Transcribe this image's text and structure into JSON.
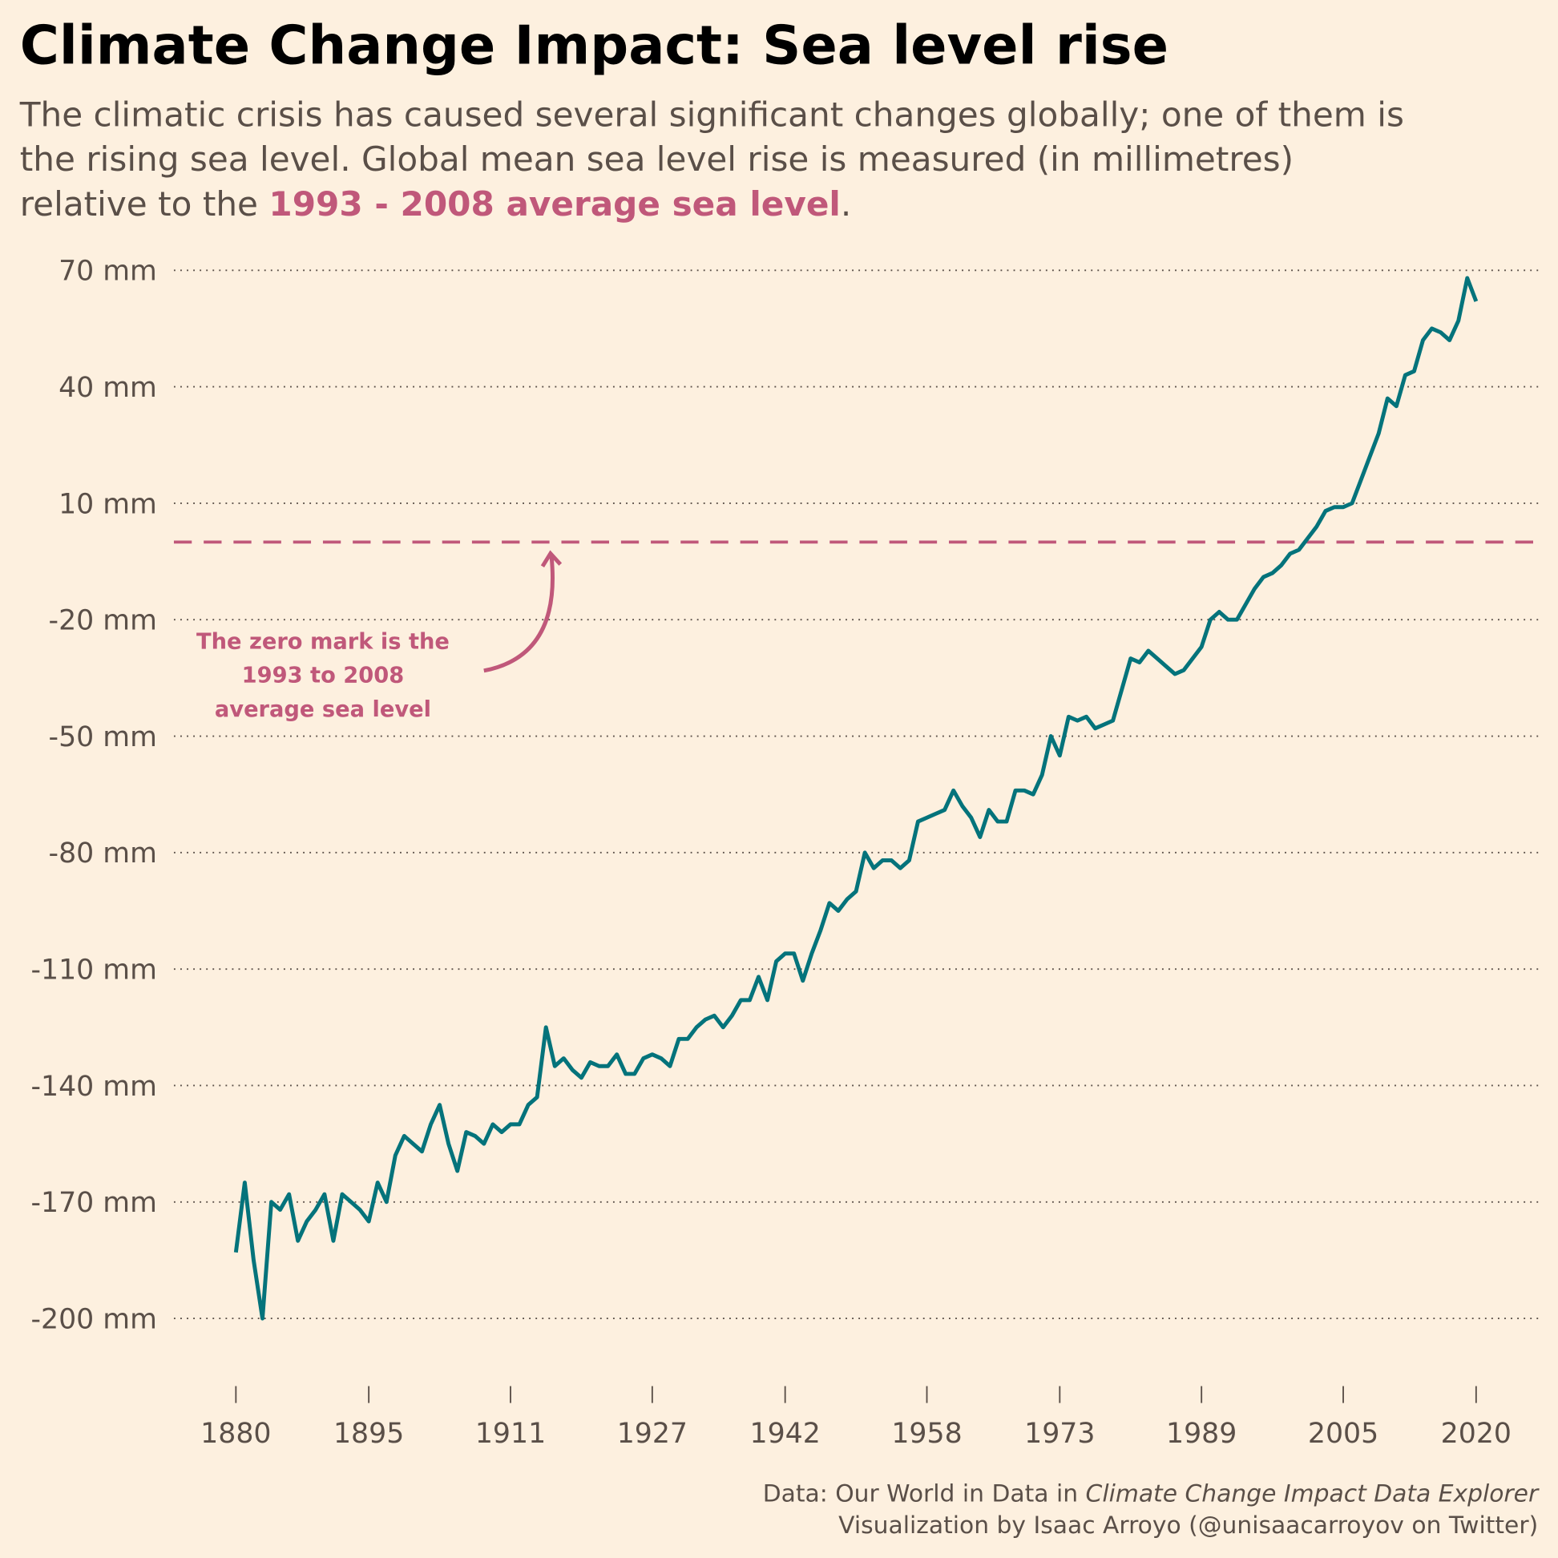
{
  "chart_data": {
    "type": "line",
    "title": "Climate Change Impact: Sea level rise",
    "subtitle": {
      "lines": [
        "The climatic crisis has caused several significant changes globally; one of them is",
        "the rising sea level. Global mean sea level rise is measured (in millimetres)",
        "relative to the "
      ],
      "highlight": "1993 - 2008 average sea level",
      "end": "."
    },
    "annotation": [
      "The zero mark is the",
      "1993 to 2008",
      "average sea level"
    ],
    "reference_line": {
      "value": 0,
      "color": "#c0587a"
    },
    "caption": {
      "line1_prefix": "Data: Our World in Data in ",
      "line1_italic": "Climate Change Impact Data Explorer",
      "line2": "Visualization by Isaac Arroyo (@unisaacarroyov on Twitter)"
    },
    "x": [
      1880,
      1881,
      1882,
      1883,
      1884,
      1885,
      1886,
      1887,
      1888,
      1889,
      1890,
      1891,
      1892,
      1893,
      1894,
      1895,
      1896,
      1897,
      1898,
      1899,
      1900,
      1901,
      1902,
      1903,
      1904,
      1905,
      1906,
      1907,
      1908,
      1909,
      1910,
      1911,
      1912,
      1913,
      1914,
      1915,
      1916,
      1917,
      1918,
      1919,
      1920,
      1921,
      1922,
      1923,
      1924,
      1925,
      1926,
      1927,
      1928,
      1929,
      1930,
      1931,
      1932,
      1933,
      1934,
      1935,
      1936,
      1937,
      1938,
      1939,
      1940,
      1941,
      1942,
      1943,
      1944,
      1945,
      1946,
      1947,
      1948,
      1949,
      1950,
      1951,
      1952,
      1953,
      1954,
      1955,
      1956,
      1957,
      1958,
      1959,
      1960,
      1961,
      1962,
      1963,
      1964,
      1965,
      1966,
      1967,
      1968,
      1969,
      1970,
      1971,
      1972,
      1973,
      1974,
      1975,
      1976,
      1977,
      1978,
      1979,
      1980,
      1981,
      1982,
      1983,
      1984,
      1985,
      1986,
      1987,
      1988,
      1989,
      1990,
      1991,
      1992,
      1993,
      1994,
      1995,
      1996,
      1997,
      1998,
      1999,
      2000,
      2001,
      2002,
      2003,
      2004,
      2005,
      2006,
      2007,
      2008,
      2009,
      2010,
      2011,
      2012,
      2013,
      2014,
      2015,
      2016,
      2017,
      2018,
      2019,
      2020
    ],
    "series": [
      {
        "name": "Global mean sea level",
        "color": "#04737b",
        "values": [
          -183,
          -165,
          -185,
          -200,
          -170,
          -172,
          -168,
          -180,
          -175,
          -172,
          -168,
          -180,
          -168,
          -170,
          -172,
          -175,
          -165,
          -170,
          -158,
          -153,
          -155,
          -157,
          -150,
          -145,
          -155,
          -162,
          -152,
          -153,
          -155,
          -150,
          -152,
          -150,
          -150,
          -145,
          -143,
          -125,
          -135,
          -133,
          -136,
          -138,
          -134,
          -135,
          -135,
          -132,
          -137,
          -137,
          -133,
          -132,
          -133,
          -135,
          -128,
          -128,
          -125,
          -123,
          -122,
          -125,
          -122,
          -118,
          -118,
          -112,
          -118,
          -108,
          -106,
          -106,
          -113,
          -106,
          -100,
          -93,
          -95,
          -92,
          -90,
          -80,
          -84,
          -82,
          -82,
          -84,
          -82,
          -72,
          -71,
          -70,
          -69,
          -64,
          -68,
          -71,
          -76,
          -69,
          -72,
          -72,
          -64,
          -64,
          -65,
          -60,
          -50,
          -55,
          -45,
          -46,
          -45,
          -48,
          -47,
          -46,
          -38,
          -30,
          -31,
          -28,
          -30,
          -32,
          -34,
          -33,
          -30,
          -27,
          -20,
          -18,
          -20,
          -20,
          -16,
          -12,
          -9,
          -8,
          -6,
          -3,
          -2,
          1,
          4,
          8,
          9,
          9,
          10,
          16,
          22,
          28,
          37,
          35,
          43,
          44,
          52,
          55,
          54,
          52,
          57,
          68,
          62
        ]
      }
    ],
    "xlim": [
      1873,
      2027
    ],
    "xticks": [
      1880,
      1895,
      1911,
      1927,
      1942,
      1958,
      1973,
      1989,
      2005,
      2020
    ],
    "ylim": [
      -215,
      75
    ],
    "yticks": [
      {
        "value": 70,
        "label": "70 mm"
      },
      {
        "value": 40,
        "label": "40 mm"
      },
      {
        "value": 10,
        "label": "10 mm"
      },
      {
        "value": -20,
        "label": "-20 mm"
      },
      {
        "value": -50,
        "label": "-50 mm"
      },
      {
        "value": -80,
        "label": "-80 mm"
      },
      {
        "value": -110,
        "label": "-110 mm"
      },
      {
        "value": -140,
        "label": "-140 mm"
      },
      {
        "value": -170,
        "label": "-170 mm"
      },
      {
        "value": -200,
        "label": "-200 mm"
      }
    ],
    "grid": true
  }
}
